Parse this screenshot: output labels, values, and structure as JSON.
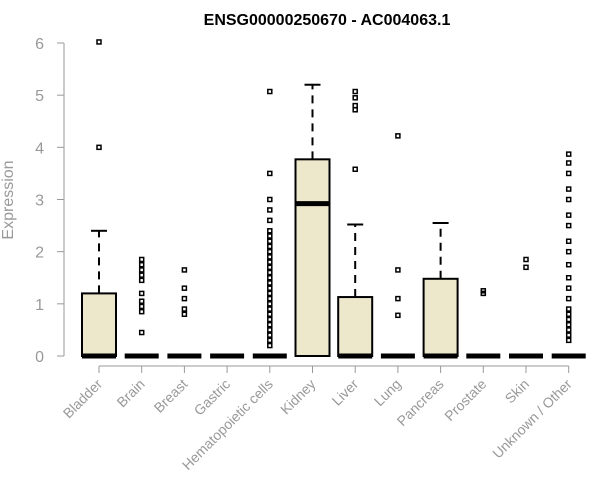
{
  "chart_data": {
    "type": "boxplot",
    "title": "ENSG00000250670 - AC004063.1",
    "xlabel": "",
    "ylabel": "Expression",
    "ylim": [
      0,
      6
    ],
    "yticks": [
      0,
      1,
      2,
      3,
      4,
      5,
      6
    ],
    "box_fill": "#ede7cc",
    "categories": [
      "Bladder",
      "Brain",
      "Breast",
      "Gastric",
      "Hematopoietic cells",
      "Kidney",
      "Liver",
      "Lung",
      "Pancreas",
      "Prostate",
      "Skin",
      "Unknown / Other"
    ],
    "boxes": [
      {
        "q1": 0,
        "median": 0,
        "q3": 1.2,
        "whisker_low": 0,
        "whisker_high": 2.4,
        "outliers": [
          4.0,
          6.02
        ]
      },
      {
        "q1": 0,
        "median": 0,
        "q3": 0,
        "whisker_low": 0,
        "whisker_high": 0,
        "outliers": [
          0.45,
          0.85,
          0.95,
          1.05,
          1.2,
          1.45,
          1.55,
          1.65,
          1.75,
          1.85
        ]
      },
      {
        "q1": 0,
        "median": 0,
        "q3": 0,
        "whisker_low": 0,
        "whisker_high": 0,
        "outliers": [
          0.8,
          0.9,
          1.1,
          1.3,
          1.65
        ]
      },
      {
        "q1": 0,
        "median": 0,
        "q3": 0,
        "whisker_low": 0,
        "whisker_high": 0,
        "outliers": []
      },
      {
        "q1": 0,
        "median": 0,
        "q3": 0,
        "whisker_low": 0,
        "whisker_high": 0,
        "outliers": [
          0.2,
          0.3,
          0.4,
          0.5,
          0.6,
          0.7,
          0.8,
          0.9,
          1.0,
          1.1,
          1.2,
          1.3,
          1.4,
          1.5,
          1.6,
          1.7,
          1.8,
          1.9,
          2.0,
          2.1,
          2.2,
          2.3,
          2.4,
          2.6,
          2.8,
          3.0,
          3.5,
          5.07
        ]
      },
      {
        "q1": 0,
        "median": 2.92,
        "q3": 3.77,
        "whisker_low": 0,
        "whisker_high": 5.2,
        "outliers": []
      },
      {
        "q1": 0,
        "median": 0,
        "q3": 1.13,
        "whisker_low": 0,
        "whisker_high": 2.52,
        "outliers": [
          3.58,
          4.72,
          4.8,
          4.95,
          5.07
        ]
      },
      {
        "q1": 0,
        "median": 0,
        "q3": 0,
        "whisker_low": 0,
        "whisker_high": 0,
        "outliers": [
          0.78,
          1.1,
          1.65,
          4.22
        ]
      },
      {
        "q1": 0,
        "median": 0,
        "q3": 1.48,
        "whisker_low": 0,
        "whisker_high": 2.55,
        "outliers": []
      },
      {
        "q1": 0,
        "median": 0,
        "q3": 0,
        "whisker_low": 0,
        "whisker_high": 0,
        "outliers": [
          1.2,
          1.25
        ]
      },
      {
        "q1": 0,
        "median": 0,
        "q3": 0,
        "whisker_low": 0,
        "whisker_high": 0,
        "outliers": [
          1.7,
          1.85
        ]
      },
      {
        "q1": 0,
        "median": 0,
        "q3": 0,
        "whisker_low": 0,
        "whisker_high": 0,
        "outliers": [
          0.3,
          0.4,
          0.5,
          0.6,
          0.7,
          0.8,
          0.9,
          1.1,
          1.3,
          1.5,
          1.75,
          2.0,
          2.2,
          2.5,
          2.7,
          3.0,
          3.2,
          3.5,
          3.7,
          3.87
        ]
      }
    ]
  }
}
